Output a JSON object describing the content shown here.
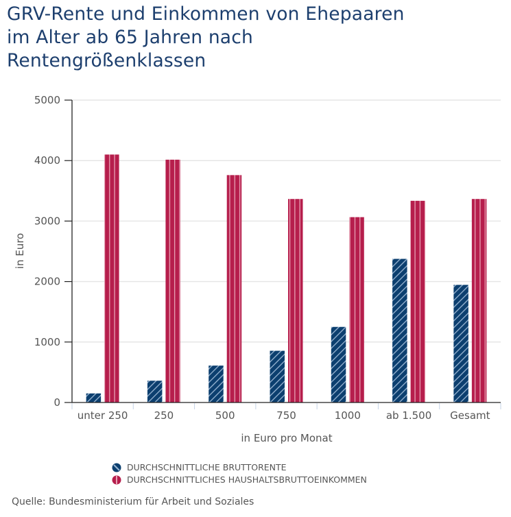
{
  "title_lines": [
    "GRV-Rente und Einkommen von Ehepaaren",
    "im Alter ab 65 Jahren nach",
    "Rentengrößenklassen"
  ],
  "source": "Quelle: Bundesministerium für Arbeit und Soziales",
  "colors": {
    "title": "#1d3f6e",
    "rente": "#0c3f6f",
    "rente_stripe": "#9bb7d4",
    "einkommen": "#b61e4c",
    "einkommen_stripe": "#e8a3b6",
    "grid": "#e6e6e6",
    "axis": "#222222",
    "category_tick": "#c5d3e6"
  },
  "chart_data": {
    "type": "bar",
    "title": "GRV-Rente und Einkommen von Ehepaaren im Alter ab 65 Jahren nach Rentengrößenklassen",
    "xlabel": "in Euro pro Monat",
    "ylabel": "in Euro",
    "ylim": [
      0,
      5000
    ],
    "yticks": [
      0,
      1000,
      2000,
      3000,
      4000,
      5000
    ],
    "ytick_labels": [
      "0",
      "1000",
      "2000",
      "3000",
      "4000",
      "5000"
    ],
    "grid": true,
    "legend_position": "bottom",
    "categories": [
      "unter 250",
      "250",
      "500",
      "750",
      "1000",
      "ab 1.500",
      "Gesamt"
    ],
    "series": [
      {
        "name": "DURCHSCHNITTLICHE BRUTTORENTE",
        "key": "rente",
        "values": [
          150,
          360,
          610,
          855,
          1250,
          2375,
          1945
        ]
      },
      {
        "name": "DURCHSCHNITTLICHES HAUSHALTSBRUTTOEINKOMMEN",
        "key": "einkommen",
        "values": [
          4100,
          4015,
          3760,
          3365,
          3065,
          3335,
          3365
        ]
      }
    ]
  }
}
